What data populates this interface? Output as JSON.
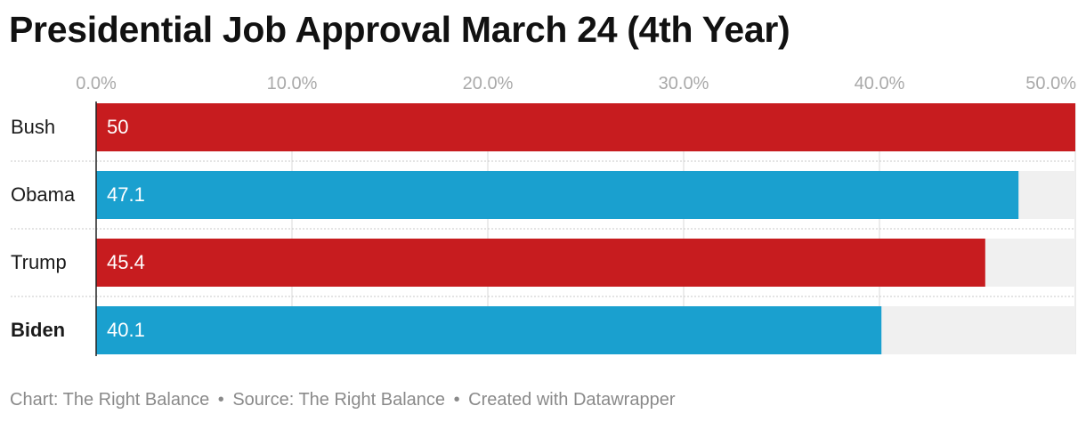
{
  "title": "Presidential Job Approval March 24 (4th Year)",
  "footer": {
    "chart_credit": "Chart: The Right Balance",
    "separator": "•",
    "source": "Source: The Right Balance",
    "created_with": "Created with Datawrapper"
  },
  "colors": {
    "red": "#c71c1f",
    "blue": "#1aa0cf",
    "track": "#f0f0f0",
    "axis_text": "#a9a9a9",
    "grid": "#d9d9d9"
  },
  "chart_data": {
    "type": "bar",
    "orientation": "horizontal",
    "title": "Presidential Job Approval March 24 (4th Year)",
    "categories": [
      "Bush",
      "Obama",
      "Trump",
      "Biden"
    ],
    "values": [
      50,
      47.1,
      45.4,
      40.1
    ],
    "value_labels": [
      "50",
      "47.1",
      "45.4",
      "40.1"
    ],
    "bar_colors": [
      "#c71c1f",
      "#1aa0cf",
      "#c71c1f",
      "#1aa0cf"
    ],
    "bold_categories": [
      "Biden"
    ],
    "xlim": [
      0,
      50
    ],
    "xticks": [
      0,
      10,
      20,
      30,
      40,
      50
    ],
    "xtick_labels": [
      "0.0%",
      "10.0%",
      "20.0%",
      "30.0%",
      "40.0%",
      "50.0%"
    ],
    "axis_position": "top",
    "grid": true,
    "legend": "none"
  }
}
